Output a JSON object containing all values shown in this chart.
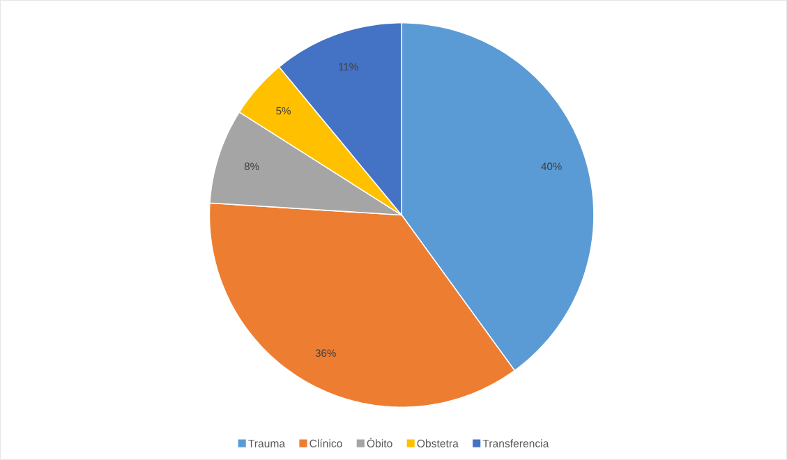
{
  "chart_data": {
    "type": "pie",
    "categories": [
      "Trauma",
      "Clínico",
      "Óbito",
      "Obstetra",
      "Transferencia"
    ],
    "values": [
      40,
      36,
      8,
      5,
      11
    ],
    "colors": [
      "#5b9bd5",
      "#ed7d31",
      "#a5a5a5",
      "#ffc000",
      "#4472c4"
    ],
    "value_labels": [
      "40%",
      "36%",
      "8%",
      "5%",
      "11%"
    ],
    "legend": "bottom"
  }
}
